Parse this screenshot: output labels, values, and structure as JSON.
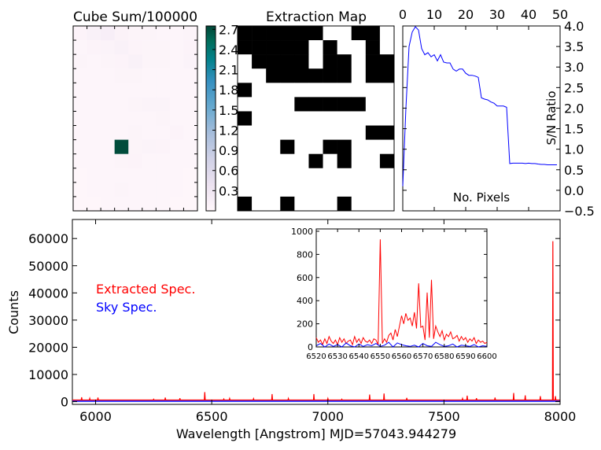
{
  "chart_data": [
    {
      "type": "heatmap",
      "title": "Cube Sum/100000",
      "grid_size": [
        9,
        13
      ],
      "colormap": [
        "#fff7fb",
        "#ece2f0",
        "#d0d1e6",
        "#a6bddb",
        "#67a9cf",
        "#3690c0",
        "#02818a",
        "#016c59",
        "#014636"
      ],
      "values": [
        [
          0.06,
          0.1,
          0.14,
          0.08,
          0.05,
          0.05,
          0.04,
          0.04,
          0.05
        ],
        [
          0.04,
          0.06,
          0.07,
          0.1,
          0.06,
          0.05,
          0.05,
          0.04,
          0.06
        ],
        [
          0.05,
          0.04,
          0.05,
          0.06,
          0.1,
          0.05,
          0.05,
          0.04,
          0.07
        ],
        [
          0.03,
          0.04,
          0.04,
          0.05,
          0.05,
          0.04,
          0.04,
          0.03,
          0.04
        ],
        [
          0.03,
          0.03,
          0.03,
          0.04,
          0.04,
          0.04,
          0.03,
          0.03,
          0.03
        ],
        [
          0.03,
          0.03,
          0.04,
          0.04,
          0.05,
          0.07,
          0.07,
          0.03,
          0.03
        ],
        [
          0.03,
          0.03,
          0.03,
          0.04,
          0.04,
          0.04,
          0.05,
          0.03,
          0.03
        ],
        [
          0.03,
          0.03,
          0.04,
          0.04,
          0.05,
          0.04,
          0.04,
          0.06,
          0.03
        ],
        [
          0.03,
          0.03,
          0.03,
          2.7,
          0.05,
          0.07,
          0.06,
          0.03,
          0.03
        ],
        [
          0.03,
          0.03,
          0.04,
          0.05,
          0.06,
          0.04,
          0.04,
          0.03,
          0.03
        ],
        [
          0.02,
          0.03,
          0.03,
          0.04,
          0.04,
          0.04,
          0.03,
          0.03,
          0.02
        ],
        [
          0.02,
          0.03,
          0.03,
          0.05,
          0.04,
          0.03,
          0.03,
          0.03,
          0.02
        ],
        [
          0.02,
          0.02,
          0.03,
          0.04,
          0.03,
          0.03,
          0.03,
          0.02,
          0.02
        ]
      ],
      "vmin": 0,
      "vmax": 2.75,
      "colorbar_ticks": [
        "0.3",
        "0.6",
        "0.9",
        "1.2",
        "1.5",
        "1.8",
        "2.1",
        "2.4",
        "2.7"
      ]
    },
    {
      "type": "heatmap",
      "title": "Extraction Map",
      "grid_size": [
        11,
        13
      ],
      "values": [
        [
          1,
          1,
          1,
          1,
          1,
          1,
          0,
          0,
          1,
          1,
          0
        ],
        [
          1,
          1,
          1,
          1,
          1,
          0,
          1,
          0,
          0,
          1,
          0
        ],
        [
          0,
          1,
          1,
          1,
          1,
          0,
          1,
          1,
          0,
          1,
          1
        ],
        [
          0,
          0,
          1,
          1,
          1,
          1,
          1,
          1,
          0,
          1,
          1
        ],
        [
          1,
          0,
          0,
          0,
          0,
          0,
          0,
          0,
          0,
          0,
          0
        ],
        [
          0,
          0,
          0,
          0,
          1,
          1,
          1,
          1,
          1,
          0,
          0
        ],
        [
          1,
          0,
          0,
          0,
          0,
          0,
          0,
          0,
          0,
          0,
          0
        ],
        [
          0,
          0,
          0,
          0,
          0,
          0,
          0,
          0,
          0,
          1,
          1
        ],
        [
          0,
          0,
          0,
          1,
          0,
          0,
          1,
          1,
          0,
          0,
          0
        ],
        [
          0,
          0,
          0,
          0,
          0,
          1,
          0,
          1,
          0,
          0,
          1
        ],
        [
          0,
          0,
          0,
          0,
          0,
          0,
          0,
          0,
          0,
          0,
          0
        ],
        [
          0,
          0,
          0,
          0,
          0,
          0,
          0,
          0,
          0,
          0,
          0
        ],
        [
          1,
          0,
          0,
          1,
          0,
          0,
          0,
          1,
          0,
          0,
          0
        ]
      ]
    },
    {
      "type": "line",
      "xlabel": "No. Pixels",
      "ylabel": "S/N Ratio",
      "xlim": [
        0,
        50
      ],
      "ylim": [
        -0.5,
        4.0
      ],
      "x_ticks": [
        "0",
        "10",
        "20",
        "30",
        "40",
        "50"
      ],
      "y_ticks": [
        "−0.5",
        "0.0",
        "0.5",
        "1.0",
        "1.5",
        "2.0",
        "2.5",
        "3.0",
        "3.5",
        "4.0"
      ],
      "color": "#0000ff",
      "x": [
        0,
        1,
        2,
        3,
        4,
        5,
        6,
        7,
        8,
        9,
        10,
        11,
        12,
        13,
        14,
        15,
        16,
        17,
        18,
        19,
        20,
        21,
        22,
        23,
        24,
        25,
        26,
        27,
        28,
        29,
        30,
        31,
        32,
        33,
        34,
        35,
        36,
        37,
        38,
        39,
        40,
        41,
        42,
        43,
        44,
        45,
        46,
        47,
        48,
        49
      ],
      "y": [
        0.1,
        2.0,
        3.5,
        3.85,
        3.98,
        3.9,
        3.45,
        3.3,
        3.35,
        3.25,
        3.3,
        3.15,
        3.3,
        3.12,
        3.1,
        3.1,
        2.95,
        2.9,
        2.95,
        2.95,
        2.85,
        2.8,
        2.8,
        2.78,
        2.75,
        2.25,
        2.22,
        2.2,
        2.15,
        2.12,
        2.05,
        2.05,
        2.05,
        2.02,
        0.65,
        0.66,
        0.66,
        0.66,
        0.66,
        0.65,
        0.66,
        0.65,
        0.65,
        0.64,
        0.63,
        0.63,
        0.62,
        0.62,
        0.62,
        0.62
      ]
    },
    {
      "type": "line",
      "xlabel": "Wavelength [Angstrom] MJD=57043.944279",
      "ylabel": "Counts",
      "xlim": [
        5900,
        8000
      ],
      "ylim": [
        -1000,
        67000
      ],
      "x_ticks": [
        "6000",
        "6500",
        "7000",
        "7500",
        "8000"
      ],
      "y_ticks": [
        "0",
        "10000",
        "20000",
        "30000",
        "40000",
        "50000",
        "60000"
      ],
      "legend": [
        {
          "label": "Extracted Spec.",
          "color": "#ff0000"
        },
        {
          "label": "Sky Spec.",
          "color": "#0000ff"
        }
      ],
      "baseline_extracted": 600,
      "baseline_sky": 150,
      "extracted_peaks": [
        {
          "x": 5940,
          "y": 1600
        },
        {
          "x": 5975,
          "y": 1200
        },
        {
          "x": 6010,
          "y": 1500
        },
        {
          "x": 6250,
          "y": 900
        },
        {
          "x": 6300,
          "y": 1500
        },
        {
          "x": 6363,
          "y": 1300
        },
        {
          "x": 6470,
          "y": 3500
        },
        {
          "x": 6552,
          "y": 1000
        },
        {
          "x": 6577,
          "y": 1200
        },
        {
          "x": 6680,
          "y": 1100
        },
        {
          "x": 6760,
          "y": 2800
        },
        {
          "x": 6830,
          "y": 1200
        },
        {
          "x": 6940,
          "y": 2800
        },
        {
          "x": 7000,
          "y": 1200
        },
        {
          "x": 7060,
          "y": 900
        },
        {
          "x": 7180,
          "y": 2600
        },
        {
          "x": 7242,
          "y": 3000
        },
        {
          "x": 7340,
          "y": 1400
        },
        {
          "x": 7580,
          "y": 1200
        },
        {
          "x": 7600,
          "y": 2200
        },
        {
          "x": 7640,
          "y": 1300
        },
        {
          "x": 7720,
          "y": 1500
        },
        {
          "x": 7800,
          "y": 3200
        },
        {
          "x": 7850,
          "y": 2300
        },
        {
          "x": 7915,
          "y": 2000
        },
        {
          "x": 7969,
          "y": 59000
        },
        {
          "x": 7980,
          "y": 2000
        }
      ]
    },
    {
      "type": "line",
      "title": "",
      "xlim": [
        6520,
        6600
      ],
      "ylim": [
        0,
        1020
      ],
      "x_ticks": [
        "6520",
        "6530",
        "6540",
        "6550",
        "6560",
        "6570",
        "6580",
        "6590",
        "6600"
      ],
      "y_ticks": [
        "0",
        "200",
        "400",
        "600",
        "800",
        "1000"
      ],
      "series": [
        {
          "color": "#ff0000",
          "x": [
            6520,
            6521,
            6522,
            6523,
            6524,
            6525,
            6526,
            6527,
            6528,
            6529,
            6530,
            6531,
            6532,
            6533,
            6534,
            6535,
            6536,
            6537,
            6538,
            6539,
            6540,
            6541,
            6542,
            6543,
            6544,
            6545,
            6546,
            6547,
            6548,
            6549,
            6550,
            6551,
            6552,
            6553,
            6554,
            6555,
            6556,
            6557,
            6558,
            6559,
            6560,
            6561,
            6562,
            6563,
            6564,
            6565,
            6566,
            6567,
            6568,
            6569,
            6570,
            6571,
            6572,
            6573,
            6574,
            6575,
            6576,
            6577,
            6578,
            6579,
            6580,
            6581,
            6582,
            6583,
            6584,
            6585,
            6586,
            6587,
            6588,
            6589,
            6590,
            6591,
            6592,
            6593,
            6594,
            6595,
            6596,
            6597,
            6598,
            6599,
            6600
          ],
          "y": [
            80,
            40,
            60,
            20,
            70,
            30,
            90,
            50,
            30,
            60,
            20,
            80,
            40,
            70,
            30,
            50,
            60,
            20,
            90,
            40,
            70,
            30,
            80,
            50,
            40,
            60,
            30,
            70,
            60,
            20,
            930,
            30,
            70,
            40,
            100,
            120,
            60,
            150,
            90,
            180,
            270,
            200,
            290,
            230,
            250,
            180,
            300,
            160,
            550,
            170,
            180,
            60,
            470,
            80,
            580,
            70,
            180,
            130,
            90,
            140,
            60,
            110,
            90,
            130,
            70,
            80,
            100,
            50,
            90,
            60,
            80,
            40,
            70,
            50,
            80,
            30,
            60,
            40,
            50,
            30,
            40
          ],
          "x_offset": 0
        },
        {
          "color": "#0000ff",
          "x": [
            6520,
            6522,
            6524,
            6526,
            6528,
            6530,
            6532,
            6534,
            6536,
            6538,
            6540,
            6542,
            6544,
            6546,
            6548,
            6550,
            6552,
            6554,
            6556,
            6558,
            6560,
            6562,
            6564,
            6566,
            6568,
            6570,
            6572,
            6574,
            6576,
            6578,
            6580,
            6582,
            6584,
            6586,
            6588,
            6590,
            6592,
            6594,
            6596,
            6598,
            6600
          ],
          "y": [
            10,
            30,
            0,
            25,
            5,
            20,
            0,
            35,
            10,
            0,
            25,
            5,
            20,
            10,
            30,
            5,
            15,
            40,
            0,
            35,
            20,
            10,
            5,
            15,
            0,
            30,
            10,
            5,
            40,
            20,
            5,
            10,
            25,
            0,
            15,
            10,
            5,
            20,
            0,
            10,
            5
          ]
        }
      ]
    }
  ]
}
